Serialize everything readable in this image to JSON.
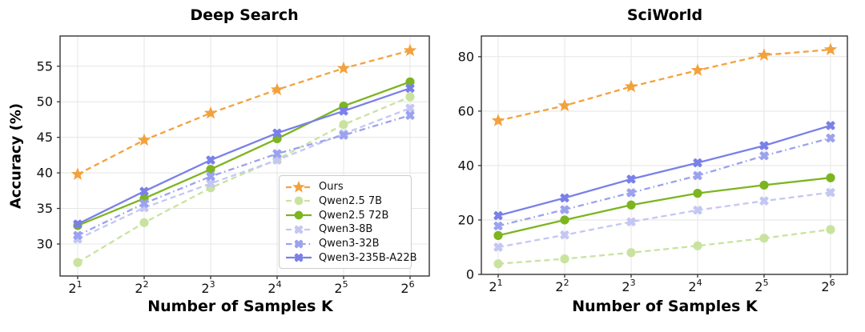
{
  "figure": {
    "background": "#ffffff",
    "grid_color": "#e7e7e7",
    "spine_color": "#333333",
    "tick_label_color": "#111111"
  },
  "chart_data": [
    {
      "type": "line",
      "title": "Deep Search",
      "xlabel": "Number of Samples K",
      "ylabel": "Accuracy (%)",
      "x_tick_base": "2",
      "x_tick_exponents": [
        "1",
        "2",
        "3",
        "4",
        "5",
        "6"
      ],
      "x_categories": [
        "2^1",
        "2^2",
        "2^3",
        "2^4",
        "2^5",
        "2^6"
      ],
      "y_ticks": [
        30,
        35,
        40,
        45,
        50,
        55
      ],
      "ylim": [
        25.5,
        59.25
      ],
      "grid": true,
      "legend_position": "lower right",
      "series": [
        {
          "name": "Ours",
          "color": "#F2A23D",
          "marker": "star",
          "line": "dashed",
          "values": [
            39.8,
            44.6,
            48.4,
            51.7,
            54.7,
            57.2
          ]
        },
        {
          "name": "Qwen2.5 7B",
          "color": "#C9E39F",
          "marker": "circle",
          "line": "dashed",
          "values": [
            27.4,
            33.0,
            37.9,
            41.9,
            46.8,
            50.7
          ]
        },
        {
          "name": "Qwen2.5 72B",
          "color": "#7CB51F",
          "marker": "circle",
          "line": "solid",
          "values": [
            32.6,
            36.4,
            40.5,
            44.8,
            49.4,
            52.8
          ]
        },
        {
          "name": "Qwen3-8B",
          "color": "#C4C7F4",
          "marker": "x",
          "line": "dashed",
          "values": [
            30.7,
            35.1,
            38.5,
            41.8,
            45.5,
            49.1
          ]
        },
        {
          "name": "Qwen3-32B",
          "color": "#9BA2EF",
          "marker": "x",
          "line": "dashdot",
          "values": [
            31.2,
            35.7,
            39.5,
            42.7,
            45.3,
            48.1
          ]
        },
        {
          "name": "Qwen3-235B-A22B",
          "color": "#7A80E8",
          "marker": "x",
          "line": "solid",
          "values": [
            32.8,
            37.4,
            41.8,
            45.6,
            48.7,
            51.9
          ]
        }
      ]
    },
    {
      "type": "line",
      "title": "SciWorld",
      "xlabel": "Number of Samples K",
      "ylabel": "",
      "x_tick_base": "2",
      "x_tick_exponents": [
        "1",
        "2",
        "3",
        "4",
        "5",
        "6"
      ],
      "x_categories": [
        "2^1",
        "2^2",
        "2^3",
        "2^4",
        "2^5",
        "2^6"
      ],
      "y_ticks": [
        0,
        20,
        40,
        60,
        80
      ],
      "ylim": [
        0,
        87.6
      ],
      "grid": true,
      "legend_position": "none",
      "series": [
        {
          "name": "Ours",
          "color": "#F2A23D",
          "marker": "star",
          "line": "dashed",
          "values": [
            56.5,
            62.0,
            69.0,
            75.0,
            80.6,
            82.6
          ]
        },
        {
          "name": "Qwen2.5 7B",
          "color": "#C9E39F",
          "marker": "circle",
          "line": "dashed",
          "values": [
            3.9,
            5.7,
            8.0,
            10.5,
            13.3,
            16.5
          ]
        },
        {
          "name": "Qwen2.5 72B",
          "color": "#7CB51F",
          "marker": "circle",
          "line": "solid",
          "values": [
            14.3,
            20.0,
            25.5,
            29.8,
            32.8,
            35.5
          ]
        },
        {
          "name": "Qwen3-8B",
          "color": "#C4C7F4",
          "marker": "x",
          "line": "dashed",
          "values": [
            10.0,
            14.5,
            19.3,
            23.6,
            27.0,
            30.1
          ]
        },
        {
          "name": "Qwen3-32B",
          "color": "#9BA2EF",
          "marker": "x",
          "line": "dashdot",
          "values": [
            17.8,
            23.8,
            30.0,
            36.3,
            43.6,
            50.1
          ]
        },
        {
          "name": "Qwen3-235B-A22B",
          "color": "#7A80E8",
          "marker": "x",
          "line": "solid",
          "values": [
            21.6,
            28.1,
            35.0,
            41.0,
            47.3,
            54.7
          ]
        }
      ]
    }
  ]
}
